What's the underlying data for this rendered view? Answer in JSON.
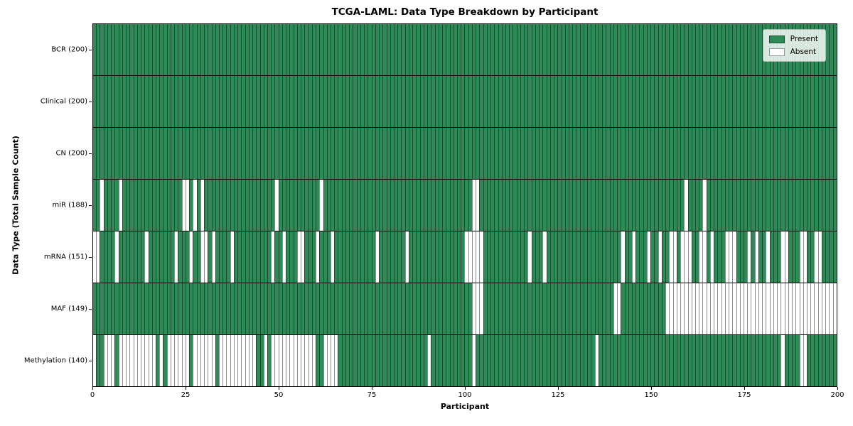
{
  "title": "TCGA-LAML: Data Type Breakdown by Participant",
  "chart_data": {
    "type": "heatmap",
    "title": "TCGA-LAML: Data Type Breakdown by Participant",
    "xlabel": "Participant",
    "ylabel": "Data Type (Total Sample Count)",
    "x_ticks": [
      0,
      25,
      50,
      75,
      100,
      125,
      150,
      175,
      200
    ],
    "x_range": [
      0,
      200
    ],
    "n_participants": 200,
    "grid": false,
    "legend_position": "upper right",
    "colors": {
      "present": "#2e8b57",
      "absent": "#ffffff",
      "cell_edge": "rgba(0,0,0,0.45)",
      "row_divider": "#000000"
    },
    "legend": {
      "entries": [
        {
          "label": "Present",
          "color": "#2e8b57"
        },
        {
          "label": "Absent",
          "color": "#ffffff"
        }
      ]
    },
    "rows": [
      {
        "label": "BCR (200)",
        "data_type": "BCR",
        "present_count": 200,
        "absent_participants": []
      },
      {
        "label": "Clinical (200)",
        "data_type": "Clinical",
        "present_count": 200,
        "absent_participants": []
      },
      {
        "label": "CN (200)",
        "data_type": "CN",
        "present_count": 200,
        "absent_participants": []
      },
      {
        "label": "miR (188)",
        "data_type": "miR",
        "present_count": 188,
        "absent_participants": [
          2,
          7,
          24,
          25,
          27,
          29,
          49,
          61,
          102,
          103,
          159,
          164
        ]
      },
      {
        "label": "mRNA (151)",
        "data_type": "mRNA",
        "present_count": 151,
        "absent_participants": [
          0,
          1,
          6,
          14,
          22,
          26,
          29,
          30,
          32,
          37,
          48,
          51,
          55,
          56,
          60,
          64,
          76,
          84,
          100,
          101,
          102,
          103,
          104,
          117,
          121,
          142,
          145,
          149,
          152,
          155,
          156,
          158,
          159,
          160,
          163,
          164,
          166,
          170,
          171,
          172,
          176,
          178,
          181,
          185,
          186,
          190,
          191,
          194,
          195
        ]
      },
      {
        "label": "MAF (149)",
        "data_type": "MAF",
        "present_count": 149,
        "absent_participants": [
          102,
          103,
          104,
          140,
          141,
          154,
          155,
          156,
          157,
          158,
          159,
          160,
          161,
          162,
          163,
          164,
          165,
          166,
          167,
          168,
          169,
          170,
          171,
          172,
          173,
          174,
          175,
          176,
          177,
          178,
          179,
          180,
          181,
          182,
          183,
          184,
          185,
          186,
          187,
          188,
          189,
          190,
          191,
          192,
          193,
          194,
          195,
          196,
          197,
          198,
          199
        ]
      },
      {
        "label": "Methylation (140)",
        "data_type": "Methylation",
        "present_count": 140,
        "absent_participants": [
          0,
          3,
          4,
          5,
          7,
          8,
          9,
          10,
          11,
          12,
          13,
          14,
          15,
          16,
          18,
          20,
          21,
          22,
          23,
          24,
          25,
          27,
          28,
          29,
          30,
          31,
          32,
          34,
          35,
          36,
          37,
          38,
          39,
          40,
          41,
          42,
          43,
          46,
          48,
          49,
          50,
          51,
          52,
          53,
          54,
          55,
          56,
          57,
          58,
          59,
          62,
          63,
          64,
          65,
          90,
          102,
          135,
          185,
          190,
          191
        ]
      }
    ]
  }
}
